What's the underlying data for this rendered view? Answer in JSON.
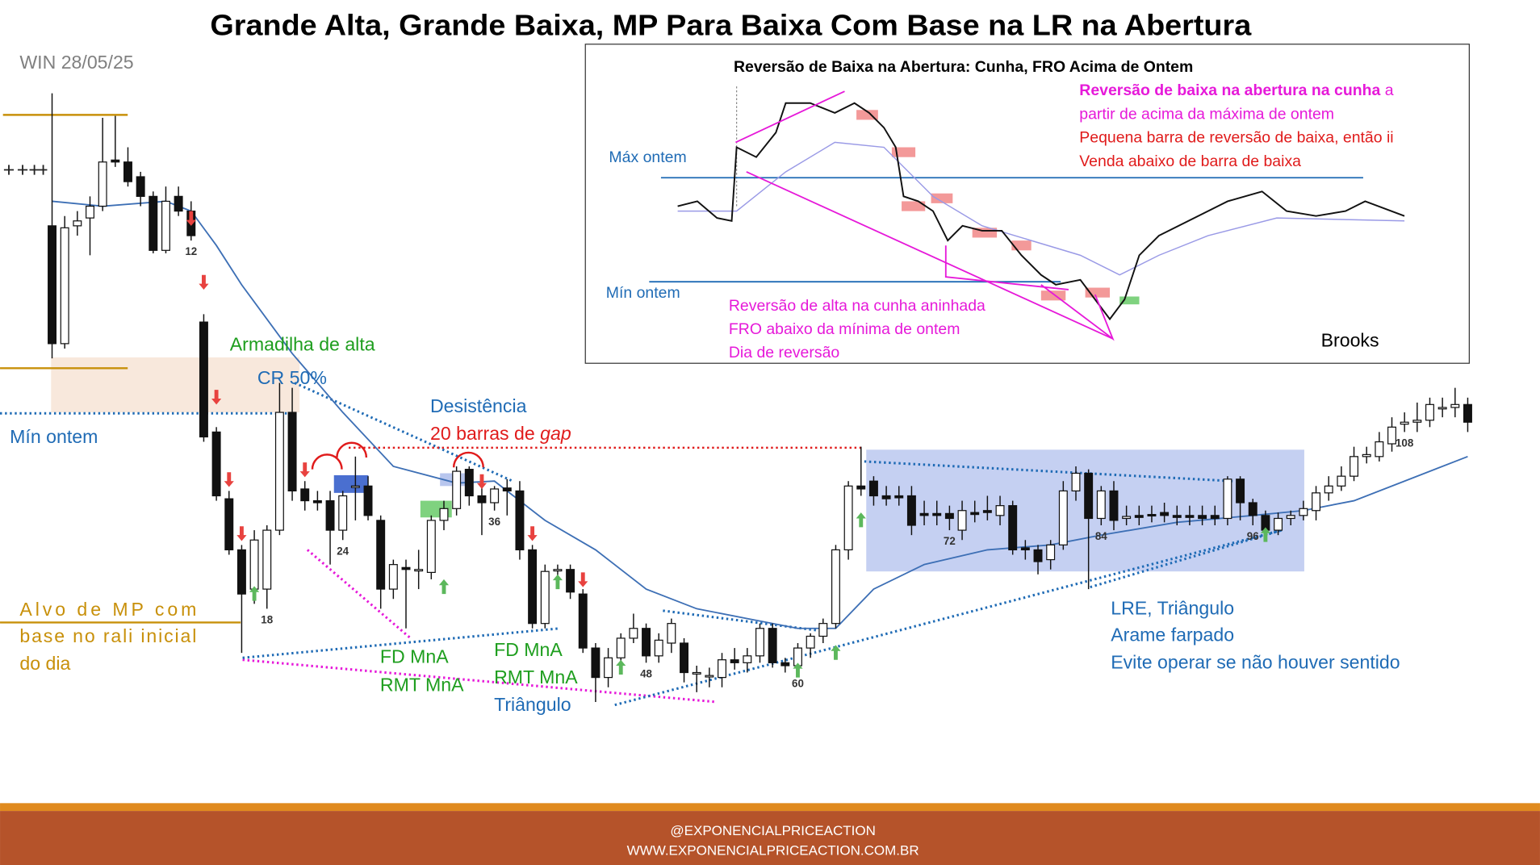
{
  "title": "Grande Alta, Grande Baixa, MP Para Baixa Com Base na LR na Abertura",
  "subtitle": "WIN 28/05/25",
  "annotations": {
    "armadilha": "Armadilha de alta",
    "cr": "CR 50%",
    "min_ontem": "Mín ontem",
    "desistencia": "Desistência",
    "gap_text": "20 barras de",
    "gap_emphasis": "gap",
    "alvo": [
      "Alvo de MP com",
      "base no rali inicial",
      "do dia"
    ],
    "fd1": [
      "FD MnA",
      "RMT MnA"
    ],
    "fd2": [
      "FD MnA",
      "RMT MnA",
      "Triângulo"
    ],
    "lre": [
      "LRE, Triângulo",
      "Arame farpado",
      "Evite operar se não houver sentido"
    ]
  },
  "inset": {
    "title": "Reversão de Baixa na Abertura: Cunha, FRO Acima de Ontem",
    "note_bold": "Reversão de baixa na abertura na cunha",
    "note_rest": "a",
    "note_line2": "partir de acima da máxima de ontem",
    "red_notes": [
      "Pequena barra de reversão de baixa, então ii",
      "Venda abaixo de barra de baixa"
    ],
    "max_ontem": "Máx ontem",
    "min_ontem": "Mín ontem",
    "magenta_notes": [
      "Reversão de alta na cunha aninhada",
      "FRO abaixo da mínima de ontem",
      "Dia de reversão"
    ],
    "author": "Brooks"
  },
  "footer": [
    "@EXPONENCIALPRICEACTION",
    "WWW.EXPONENCIALPRICEACTION.COM.BR"
  ],
  "chart_data": {
    "type": "candlestick",
    "ylim": [
      119,
      1000
    ],
    "up_color": "#ffffff",
    "down_color": "#111111",
    "candles": [
      [
        770,
        905,
        635,
        650
      ],
      [
        650,
        780,
        645,
        768
      ],
      [
        770,
        785,
        760,
        775
      ],
      [
        778,
        800,
        740,
        790
      ],
      [
        790,
        880,
        785,
        835
      ],
      [
        837,
        882,
        830,
        835
      ],
      [
        835,
        850,
        810,
        815
      ],
      [
        820,
        825,
        790,
        800
      ],
      [
        800,
        805,
        742,
        745
      ],
      [
        745,
        810,
        742,
        795
      ],
      [
        800,
        810,
        780,
        785
      ],
      [
        785,
        795,
        755,
        760
      ],
      [
        672,
        680,
        550,
        555
      ],
      [
        560,
        565,
        490,
        495
      ],
      [
        492,
        500,
        435,
        440
      ],
      [
        440,
        445,
        335,
        395
      ],
      [
        400,
        460,
        385,
        450
      ],
      [
        400,
        465,
        380,
        460
      ],
      [
        460,
        610,
        455,
        580
      ],
      [
        580,
        605,
        490,
        500
      ],
      [
        502,
        510,
        480,
        490
      ],
      [
        490,
        500,
        480,
        488
      ],
      [
        490,
        500,
        425,
        460
      ],
      [
        460,
        500,
        450,
        495
      ],
      [
        505,
        535,
        470,
        505
      ],
      [
        505,
        515,
        470,
        475
      ],
      [
        470,
        475,
        380,
        400
      ],
      [
        400,
        430,
        390,
        425
      ],
      [
        422,
        430,
        360,
        420
      ],
      [
        420,
        440,
        400,
        420
      ],
      [
        417,
        475,
        410,
        470
      ],
      [
        470,
        490,
        460,
        482
      ],
      [
        482,
        525,
        475,
        520
      ],
      [
        522,
        525,
        485,
        495
      ],
      [
        495,
        505,
        455,
        488
      ],
      [
        488,
        505,
        480,
        502
      ],
      [
        503,
        512,
        475,
        500
      ],
      [
        500,
        510,
        430,
        440
      ],
      [
        440,
        445,
        360,
        365
      ],
      [
        365,
        425,
        360,
        418
      ],
      [
        420,
        425,
        410,
        420
      ],
      [
        420,
        425,
        390,
        397
      ],
      [
        395,
        400,
        335,
        340
      ],
      [
        340,
        345,
        285,
        310
      ],
      [
        310,
        340,
        300,
        330
      ],
      [
        330,
        355,
        320,
        350
      ],
      [
        350,
        375,
        345,
        360
      ],
      [
        360,
        365,
        325,
        332
      ],
      [
        332,
        355,
        325,
        348
      ],
      [
        345,
        370,
        335,
        365
      ],
      [
        345,
        350,
        305,
        315
      ],
      [
        315,
        322,
        295,
        315
      ],
      [
        312,
        320,
        300,
        312
      ],
      [
        310,
        335,
        300,
        328
      ],
      [
        328,
        340,
        318,
        325
      ],
      [
        325,
        340,
        315,
        332
      ],
      [
        332,
        365,
        325,
        360
      ],
      [
        360,
        365,
        320,
        325
      ],
      [
        325,
        330,
        315,
        322
      ],
      [
        322,
        345,
        315,
        340
      ],
      [
        340,
        355,
        330,
        352
      ],
      [
        352,
        370,
        345,
        365
      ],
      [
        365,
        445,
        360,
        440
      ],
      [
        440,
        510,
        430,
        505
      ],
      [
        505,
        545,
        495,
        502
      ],
      [
        510,
        515,
        485,
        495
      ],
      [
        495,
        505,
        485,
        492
      ],
      [
        495,
        505,
        485,
        493
      ],
      [
        495,
        505,
        455,
        465
      ],
      [
        477,
        490,
        465,
        475
      ],
      [
        477,
        490,
        465,
        475
      ],
      [
        477,
        485,
        460,
        472
      ],
      [
        460,
        490,
        450,
        480
      ],
      [
        478,
        490,
        468,
        476
      ],
      [
        480,
        495,
        470,
        478
      ],
      [
        475,
        495,
        465,
        485
      ],
      [
        485,
        490,
        435,
        440
      ],
      [
        442,
        450,
        430,
        440
      ],
      [
        440,
        445,
        415,
        428
      ],
      [
        430,
        450,
        420,
        445
      ],
      [
        445,
        510,
        440,
        500
      ],
      [
        500,
        525,
        490,
        518
      ],
      [
        518,
        522,
        400,
        472
      ],
      [
        472,
        505,
        465,
        500
      ],
      [
        500,
        510,
        460,
        470
      ],
      [
        472,
        485,
        465,
        474
      ],
      [
        475,
        485,
        465,
        473
      ],
      [
        476,
        485,
        468,
        475
      ],
      [
        478,
        488,
        468,
        475
      ],
      [
        475,
        485,
        465,
        473
      ],
      [
        475,
        485,
        465,
        473
      ],
      [
        475,
        485,
        465,
        472
      ],
      [
        475,
        485,
        465,
        472
      ],
      [
        472,
        515,
        465,
        512
      ],
      [
        512,
        515,
        470,
        488
      ],
      [
        488,
        492,
        465,
        475
      ],
      [
        475,
        480,
        450,
        460
      ],
      [
        460,
        478,
        455,
        472
      ],
      [
        472,
        480,
        465,
        475
      ],
      [
        475,
        490,
        470,
        482
      ],
      [
        480,
        505,
        470,
        498
      ],
      [
        498,
        515,
        490,
        505
      ],
      [
        505,
        525,
        500,
        515
      ],
      [
        515,
        545,
        510,
        535
      ],
      [
        535,
        545,
        528,
        537
      ],
      [
        535,
        560,
        530,
        550
      ],
      [
        548,
        575,
        540,
        565
      ],
      [
        568,
        580,
        560,
        570
      ],
      [
        570,
        590,
        560,
        572
      ],
      [
        572,
        595,
        565,
        588
      ],
      [
        585,
        595,
        575,
        585
      ],
      [
        585,
        605,
        575,
        588
      ],
      [
        588,
        595,
        560,
        570
      ]
    ],
    "ema": {
      "color": "#3d6fb5",
      "x": [
        1,
        5,
        10,
        12,
        14,
        16,
        20,
        24,
        28,
        33,
        36,
        40,
        44,
        48,
        52,
        56,
        60,
        63,
        66,
        70,
        75,
        80,
        84,
        90,
        96,
        100,
        104,
        108,
        113
      ],
      "values": [
        795,
        790,
        795,
        785,
        750,
        710,
        640,
        580,
        525,
        508,
        510,
        470,
        440,
        400,
        380,
        370,
        360,
        360,
        400,
        425,
        440,
        445,
        455,
        468,
        475,
        480,
        490,
        510,
        535
      ]
    },
    "bar_numbers": [
      12,
      18,
      24,
      36,
      48,
      60,
      72,
      84,
      96,
      108
    ]
  }
}
